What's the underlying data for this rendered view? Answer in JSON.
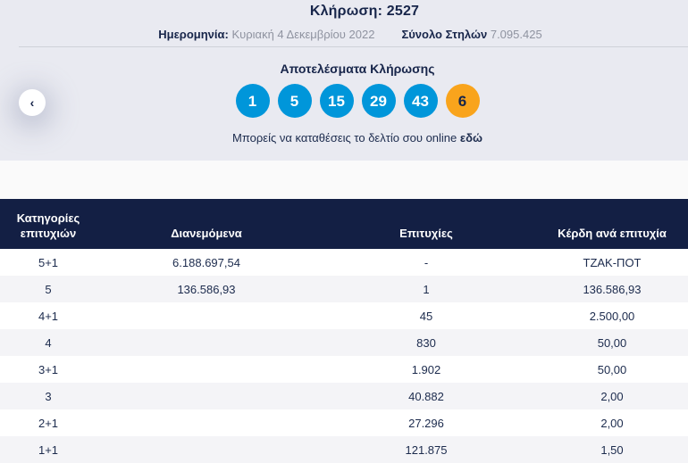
{
  "header": {
    "draw_title": "Κλήρωση: 2527",
    "date_label": "Ημερομηνία:",
    "date_value": "Κυριακή 4 Δεκεμβρίου 2022",
    "columns_label": "Σύνολο Στηλών",
    "columns_value": "7.095.425"
  },
  "results": {
    "title": "Αποτελέσματα Κλήρωσης",
    "numbers": [
      "1",
      "5",
      "15",
      "29",
      "43"
    ],
    "joker_number": "6",
    "note_text": "Μπορείς να καταθέσεις το δελτίο σου online",
    "note_link_label": "εδώ",
    "prev_arrow": "‹"
  },
  "table": {
    "headers": [
      "Κατηγορίες επιτυχιών",
      "Διανεμόμενα",
      "Επιτυχίες",
      "Κέρδη ανά επιτυχία"
    ],
    "rows": [
      {
        "category": "5+1",
        "distributed": "6.188.697,54",
        "winners": "-",
        "prize": "ΤΖΑΚ-ΠΟΤ"
      },
      {
        "category": "5",
        "distributed": "136.586,93",
        "winners": "1",
        "prize": "136.586,93"
      },
      {
        "category": "4+1",
        "distributed": "",
        "winners": "45",
        "prize": "2.500,00"
      },
      {
        "category": "4",
        "distributed": "",
        "winners": "830",
        "prize": "50,00"
      },
      {
        "category": "3+1",
        "distributed": "",
        "winners": "1.902",
        "prize": "50,00"
      },
      {
        "category": "3",
        "distributed": "",
        "winners": "40.882",
        "prize": "2,00"
      },
      {
        "category": "2+1",
        "distributed": "",
        "winners": "27.296",
        "prize": "2,00"
      },
      {
        "category": "1+1",
        "distributed": "",
        "winners": "121.875",
        "prize": "1,50"
      }
    ]
  },
  "colors": {
    "panel_background": "#e9eaf1",
    "table_header_background": "#131f44",
    "navy_text": "#1c2b4d",
    "muted_text": "#8f93a0",
    "ball_blue": "#0096da",
    "joker_orange": "#f9a41c",
    "alt_row": "#f4f4f7",
    "gap_strip": "#fafafa"
  }
}
